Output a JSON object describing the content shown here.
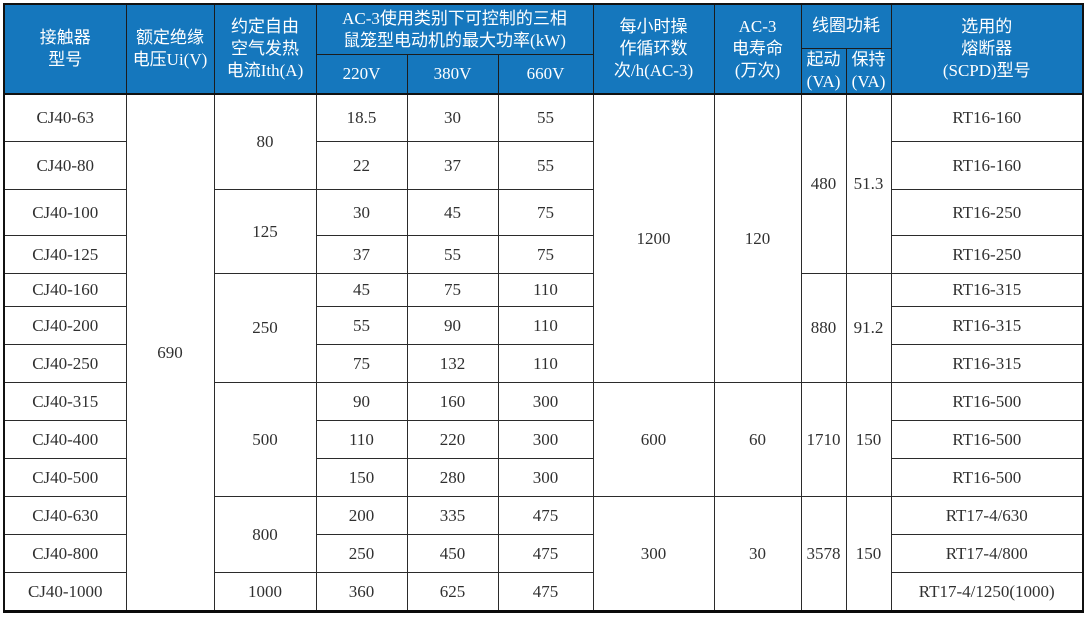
{
  "colors": {
    "header_bg": "#1577bd",
    "header_text": "#ffffff",
    "border": "#1c1c1c",
    "body_text": "#303030",
    "body_bg": "#ffffff"
  },
  "table": {
    "header_rows": [
      [
        {
          "name": "header-contactor-model",
          "label": "接触器\n型号",
          "rowspan": 3
        },
        {
          "name": "header-rated-insulation-voltage",
          "label": "额定绝缘\n电压Ui(V)",
          "rowspan": 3
        },
        {
          "name": "header-conventional-free-air-thermal-current",
          "label": "约定自由\n空气发热\n电流Ith(A)",
          "rowspan": 3
        },
        {
          "name": "header-ac3-max-motor-power",
          "label": "AC-3使用类别下可控制的三相\n鼠笼型电动机的最大功率(kW)",
          "colspan": 3,
          "rowspan": 2
        },
        {
          "name": "header-operating-cycles-per-hour",
          "label": "每小时操\n作循环数\n次/h(AC-3)",
          "rowspan": 3
        },
        {
          "name": "header-ac3-electrical-life",
          "label": "AC-3\n电寿命\n(万次)",
          "rowspan": 3
        },
        {
          "name": "header-coil-power-consumption",
          "label": "线圈功耗",
          "colspan": 2
        },
        {
          "name": "header-fuse-scpd-model",
          "label": "选用的\n熔断器\n(SCPD)型号",
          "rowspan": 3
        }
      ],
      [
        {
          "name": "header-coil-pickup-va",
          "label": "起动\n(VA)",
          "rowspan": 2
        },
        {
          "name": "header-coil-holding-va",
          "label": "保持\n(VA)",
          "rowspan": 2
        }
      ],
      [
        {
          "name": "header-220v",
          "label": "220V"
        },
        {
          "name": "header-380v",
          "label": "380V"
        },
        {
          "name": "header-660v",
          "label": "660V"
        }
      ]
    ],
    "body_rows": [
      [
        {
          "t": "CJ40-63"
        },
        {
          "t": "690",
          "rs": 13
        },
        {
          "t": "80",
          "rs": 2
        },
        {
          "t": "18.5"
        },
        {
          "t": "30"
        },
        {
          "t": "55"
        },
        {
          "t": "1200",
          "rs": 7
        },
        {
          "t": "120",
          "rs": 7
        },
        {
          "t": "480",
          "rs": 4
        },
        {
          "t": "51.3",
          "rs": 4
        },
        {
          "t": "RT16-160"
        }
      ],
      [
        {
          "t": "CJ40-80"
        },
        {
          "t": "22"
        },
        {
          "t": "37"
        },
        {
          "t": "55"
        },
        {
          "t": "RT16-160"
        }
      ],
      [
        {
          "t": "CJ40-100"
        },
        {
          "t": "125",
          "rs": 2
        },
        {
          "t": "30"
        },
        {
          "t": "45"
        },
        {
          "t": "75"
        },
        {
          "t": "RT16-250"
        }
      ],
      [
        {
          "t": "CJ40-125"
        },
        {
          "t": "37"
        },
        {
          "t": "55"
        },
        {
          "t": "75"
        },
        {
          "t": "RT16-250"
        }
      ],
      [
        {
          "t": "CJ40-160"
        },
        {
          "t": "250",
          "rs": 3
        },
        {
          "t": "45"
        },
        {
          "t": "75"
        },
        {
          "t": "110"
        },
        {
          "t": "880",
          "rs": 3
        },
        {
          "t": "91.2",
          "rs": 3
        },
        {
          "t": "RT16-315"
        }
      ],
      [
        {
          "t": "CJ40-200"
        },
        {
          "t": "55"
        },
        {
          "t": "90"
        },
        {
          "t": "110"
        },
        {
          "t": "RT16-315"
        }
      ],
      [
        {
          "t": "CJ40-250"
        },
        {
          "t": "75"
        },
        {
          "t": "132"
        },
        {
          "t": "110"
        },
        {
          "t": "RT16-315"
        }
      ],
      [
        {
          "t": "CJ40-315"
        },
        {
          "t": "500",
          "rs": 3
        },
        {
          "t": "90"
        },
        {
          "t": "160"
        },
        {
          "t": "300"
        },
        {
          "t": "600",
          "rs": 3
        },
        {
          "t": "60",
          "rs": 3
        },
        {
          "t": "1710",
          "rs": 3
        },
        {
          "t": "150",
          "rs": 3
        },
        {
          "t": "RT16-500"
        }
      ],
      [
        {
          "t": "CJ40-400"
        },
        {
          "t": "110"
        },
        {
          "t": "220"
        },
        {
          "t": "300"
        },
        {
          "t": "RT16-500"
        }
      ],
      [
        {
          "t": "CJ40-500"
        },
        {
          "t": "150"
        },
        {
          "t": "280"
        },
        {
          "t": "300"
        },
        {
          "t": "RT16-500"
        }
      ],
      [
        {
          "t": "CJ40-630"
        },
        {
          "t": "800",
          "rs": 2
        },
        {
          "t": "200"
        },
        {
          "t": "335"
        },
        {
          "t": "475"
        },
        {
          "t": "300",
          "rs": 3
        },
        {
          "t": "30",
          "rs": 3
        },
        {
          "t": "3578",
          "rs": 3
        },
        {
          "t": "150",
          "rs": 3
        },
        {
          "t": "RT17-4/630"
        }
      ],
      [
        {
          "t": "CJ40-800"
        },
        {
          "t": "250"
        },
        {
          "t": "450"
        },
        {
          "t": "475"
        },
        {
          "t": "RT17-4/800"
        }
      ],
      [
        {
          "t": "CJ40-1000"
        },
        {
          "t": "1000"
        },
        {
          "t": "360"
        },
        {
          "t": "625"
        },
        {
          "t": "475"
        },
        {
          "t": "RT17-4/1250(1000)"
        }
      ]
    ]
  }
}
